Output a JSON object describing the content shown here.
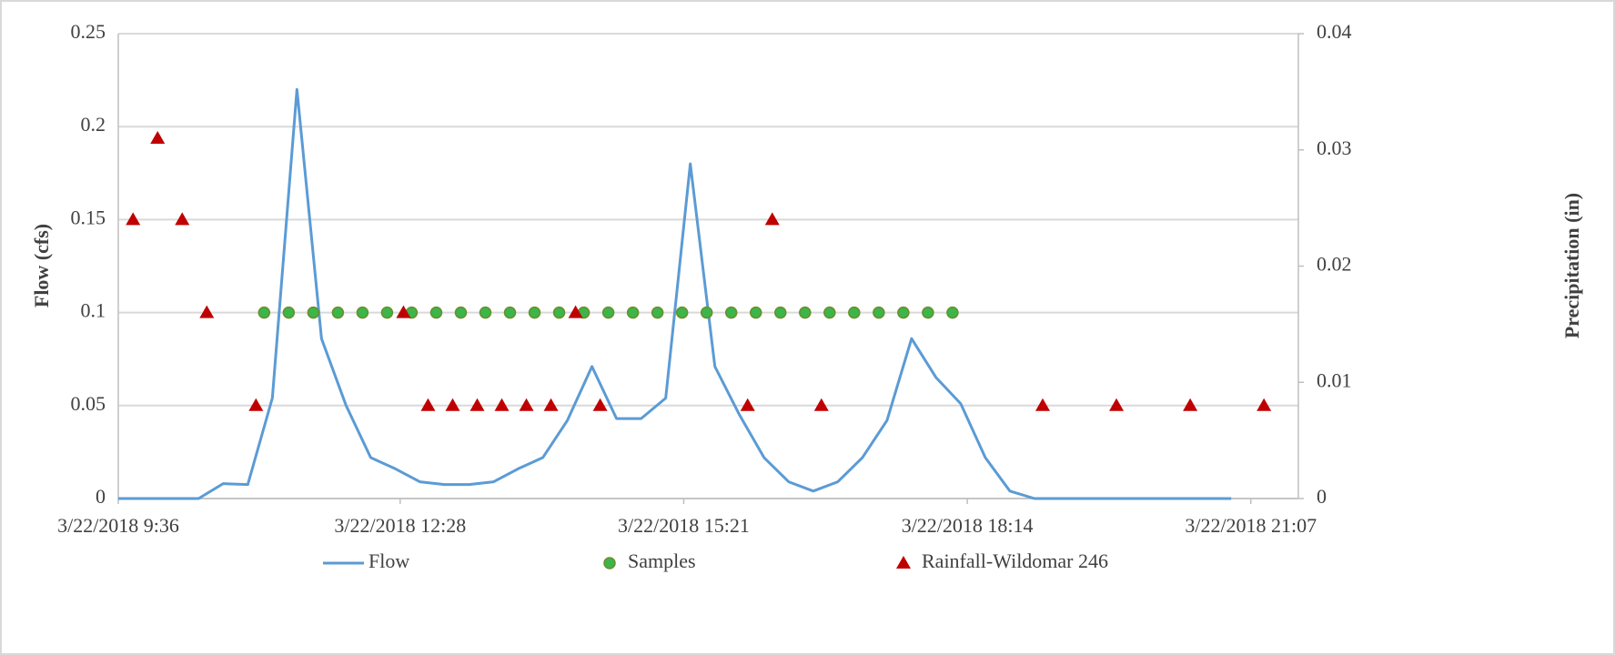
{
  "chart_data": {
    "type": "line",
    "xlabel": null,
    "ylabel": "Flow (cfs)",
    "y2label": "Precipitation (in)",
    "xlim": [
      "3/22/2018 9:36",
      "3/22/2018 21:36"
    ],
    "xticks": [
      "3/22/2018 9:36",
      "3/22/2018 12:28",
      "3/22/2018 15:21",
      "3/22/2018 18:14",
      "3/22/2018 21:07"
    ],
    "ylim": [
      0,
      0.25
    ],
    "yticks": [
      0,
      0.05,
      0.1,
      0.15,
      0.2,
      0.25
    ],
    "y2lim": [
      0,
      0.04
    ],
    "y2ticks": [
      0,
      0.01,
      0.02,
      0.03,
      0.04
    ],
    "grid": true,
    "legend": "bottom",
    "series": [
      {
        "name": "Flow",
        "type": "line",
        "color": "#5b9bd5",
        "x": [
          "3/22/2018 9:36",
          "3/22/2018 9:55",
          "3/22/2018 10:10",
          "3/22/2018 10:25",
          "3/22/2018 10:40",
          "3/22/2018 10:55",
          "3/22/2018 11:10",
          "3/22/2018 11:25",
          "3/22/2018 11:40",
          "3/22/2018 11:55",
          "3/22/2018 12:10",
          "3/22/2018 12:25",
          "3/22/2018 12:40",
          "3/22/2018 12:55",
          "3/22/2018 13:10",
          "3/22/2018 13:25",
          "3/22/2018 13:40",
          "3/22/2018 13:55",
          "3/22/2018 14:10",
          "3/22/2018 14:25",
          "3/22/2018 14:40",
          "3/22/2018 14:55",
          "3/22/2018 15:10",
          "3/22/2018 15:25",
          "3/22/2018 15:40",
          "3/22/2018 15:55",
          "3/22/2018 16:10",
          "3/22/2018 16:25",
          "3/22/2018 16:40",
          "3/22/2018 16:55",
          "3/22/2018 17:10",
          "3/22/2018 17:25",
          "3/22/2018 17:40",
          "3/22/2018 17:55",
          "3/22/2018 18:10",
          "3/22/2018 18:25",
          "3/22/2018 18:40",
          "3/22/2018 18:55",
          "3/22/2018 19:10",
          "3/22/2018 19:25",
          "3/22/2018 19:40",
          "3/22/2018 19:55",
          "3/22/2018 20:10",
          "3/22/2018 20:25",
          "3/22/2018 20:40",
          "3/22/2018 20:55"
        ],
        "values": [
          0,
          0,
          0,
          0,
          0.008,
          0.0075,
          0.054,
          0.22,
          0.086,
          0.05,
          0.022,
          0.016,
          0.009,
          0.0075,
          0.0075,
          0.009,
          0.016,
          0.022,
          0.042,
          0.071,
          0.043,
          0.043,
          0.054,
          0.18,
          0.071,
          0.045,
          0.022,
          0.009,
          0.004,
          0.009,
          0.022,
          0.042,
          0.086,
          0.065,
          0.051,
          0.022,
          0.004,
          0,
          0,
          0,
          0,
          0,
          0,
          0,
          0,
          0
        ]
      },
      {
        "name": "Samples",
        "type": "scatter",
        "marker": "circle",
        "color": "#3cb54a",
        "x": [
          "3/22/2018 11:05",
          "3/22/2018 11:20",
          "3/22/2018 11:35",
          "3/22/2018 11:50",
          "3/22/2018 12:05",
          "3/22/2018 12:20",
          "3/22/2018 12:35",
          "3/22/2018 12:50",
          "3/22/2018 13:05",
          "3/22/2018 13:20",
          "3/22/2018 13:35",
          "3/22/2018 13:50",
          "3/22/2018 14:05",
          "3/22/2018 14:20",
          "3/22/2018 14:35",
          "3/22/2018 14:50",
          "3/22/2018 15:05",
          "3/22/2018 15:20",
          "3/22/2018 15:35",
          "3/22/2018 15:50",
          "3/22/2018 16:05",
          "3/22/2018 16:20",
          "3/22/2018 16:35",
          "3/22/2018 16:50",
          "3/22/2018 17:05",
          "3/22/2018 17:20",
          "3/22/2018 17:35",
          "3/22/2018 17:50",
          "3/22/2018 18:05"
        ],
        "values": [
          0.1,
          0.1,
          0.1,
          0.1,
          0.1,
          0.1,
          0.1,
          0.1,
          0.1,
          0.1,
          0.1,
          0.1,
          0.1,
          0.1,
          0.1,
          0.1,
          0.1,
          0.1,
          0.1,
          0.1,
          0.1,
          0.1,
          0.1,
          0.1,
          0.1,
          0.1,
          0.1,
          0.1,
          0.1
        ]
      },
      {
        "name": "Rainfall-Wildomar 246",
        "type": "scatter",
        "marker": "triangle",
        "color": "#c00000",
        "axis": "y2",
        "x": [
          "3/22/2018 9:45",
          "3/22/2018 10:00",
          "3/22/2018 10:15",
          "3/22/2018 10:30",
          "3/22/2018 11:00",
          "3/22/2018 12:30",
          "3/22/2018 12:45",
          "3/22/2018 13:00",
          "3/22/2018 13:15",
          "3/22/2018 13:30",
          "3/22/2018 13:45",
          "3/22/2018 14:00",
          "3/22/2018 14:15",
          "3/22/2018 14:30",
          "3/22/2018 16:00",
          "3/22/2018 16:15",
          "3/22/2018 16:45",
          "3/22/2018 19:00",
          "3/22/2018 19:45",
          "3/22/2018 20:30",
          "3/22/2018 21:15"
        ],
        "values": [
          0.024,
          0.031,
          0.024,
          0.016,
          0.008,
          0.016,
          0.008,
          0.008,
          0.008,
          0.008,
          0.008,
          0.008,
          0.016,
          0.008,
          0.008,
          0.024,
          0.008,
          0.008,
          0.008,
          0.008,
          0.008
        ]
      }
    ]
  }
}
